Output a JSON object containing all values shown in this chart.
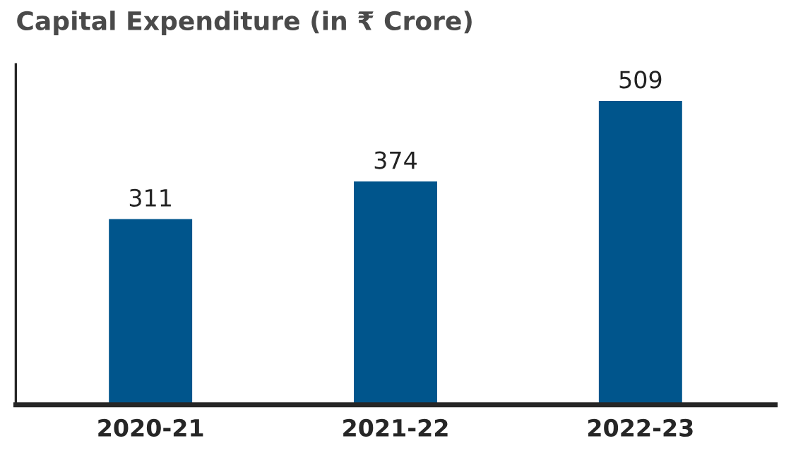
{
  "chart_data": {
    "type": "bar",
    "title": "Capital Expenditure (in ₹ Crore)",
    "categories": [
      "2020-21",
      "2021-22",
      "2022-23"
    ],
    "values": [
      311,
      374,
      509
    ],
    "color": "#00558c",
    "data_labels": true,
    "tick_labels": "x",
    "grid": false,
    "legend": false
  }
}
